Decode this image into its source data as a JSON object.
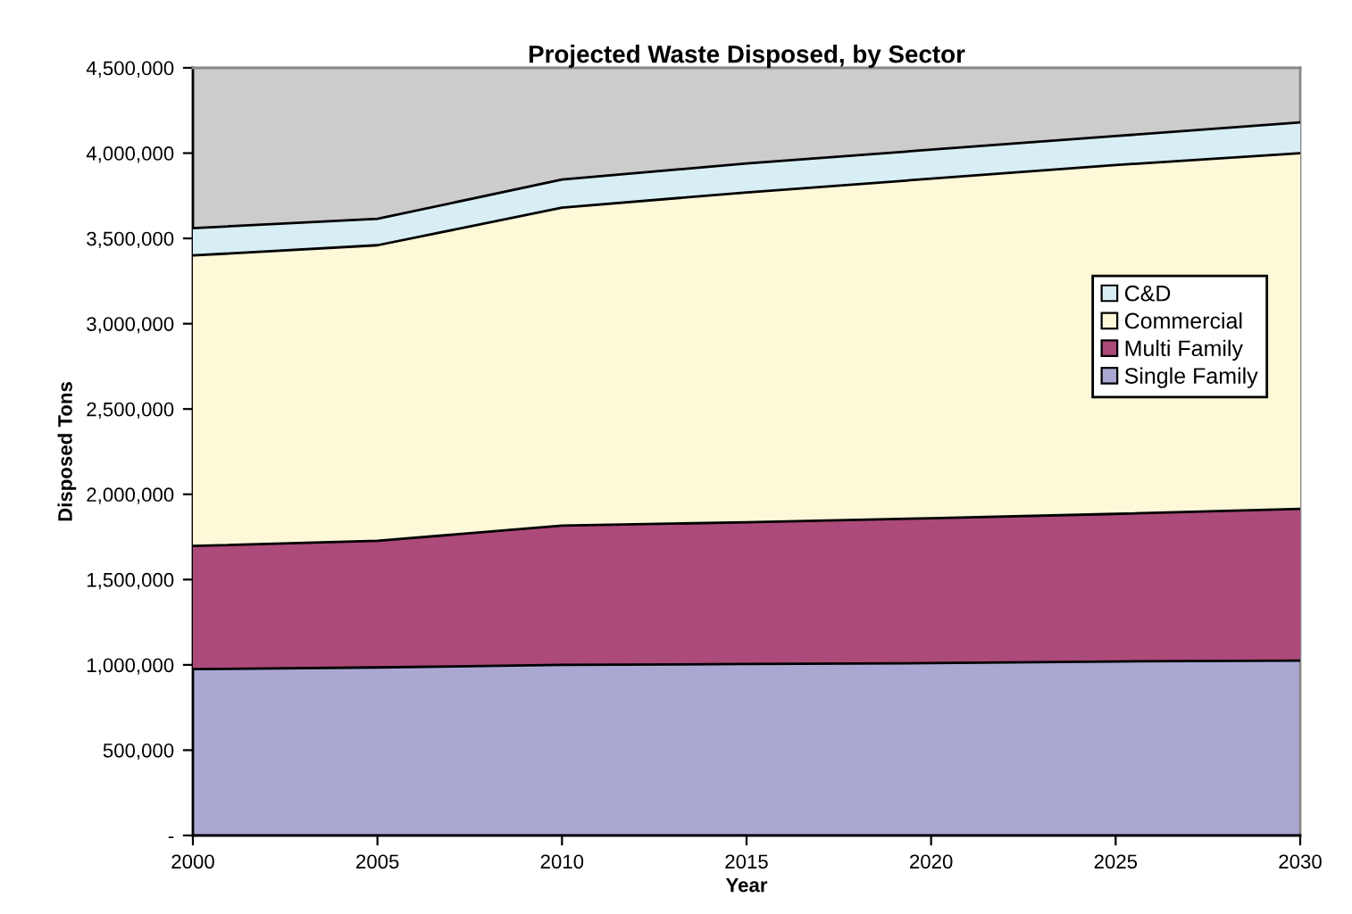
{
  "chart_data": {
    "type": "area",
    "stacked": true,
    "title": "Projected Waste Disposed, by Sector",
    "xlabel": "Year",
    "ylabel": "Disposed Tons",
    "x": [
      2000,
      2005,
      2010,
      2015,
      2020,
      2025,
      2030
    ],
    "series": [
      {
        "name": "Single Family",
        "color": "#aaa8d3",
        "values": [
          975000,
          985000,
          1000000,
          1005000,
          1010000,
          1020000,
          1025000
        ]
      },
      {
        "name": "Multi Family",
        "color": "#ac4a79",
        "values": [
          722000,
          742000,
          816000,
          831000,
          850000,
          865000,
          889000
        ]
      },
      {
        "name": "Commercial",
        "color": "#fcf8d8",
        "values": [
          1703000,
          1733000,
          1864000,
          1934000,
          1990000,
          2045000,
          2086000
        ]
      },
      {
        "name": "C&D",
        "color": "#d8eef5",
        "values": [
          160000,
          155000,
          165000,
          170000,
          170000,
          170000,
          180000
        ]
      }
    ],
    "xlim": [
      2000,
      2030
    ],
    "xticks": [
      2000,
      2005,
      2010,
      2015,
      2020,
      2025,
      2030
    ],
    "ylim": [
      0,
      4500000
    ],
    "yticks": [
      {
        "value": 0,
        "label": "-"
      },
      {
        "value": 500000,
        "label": "500,000"
      },
      {
        "value": 1000000,
        "label": "1,000,000"
      },
      {
        "value": 1500000,
        "label": "1,500,000"
      },
      {
        "value": 2000000,
        "label": "2,000,000"
      },
      {
        "value": 2500000,
        "label": "2,500,000"
      },
      {
        "value": 3000000,
        "label": "3,000,000"
      },
      {
        "value": 3500000,
        "label": "3,500,000"
      },
      {
        "value": 4000000,
        "label": "4,000,000"
      },
      {
        "value": 4500000,
        "label": "4,500,000"
      }
    ],
    "grid": false,
    "legend": "right"
  }
}
